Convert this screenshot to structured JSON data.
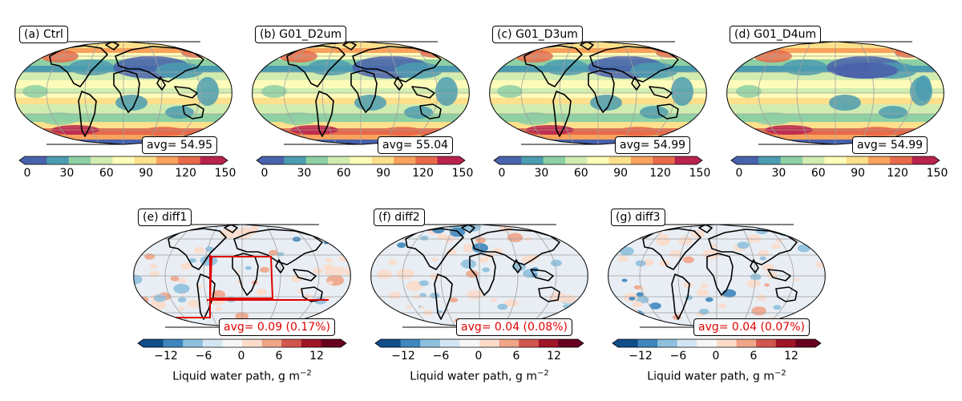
{
  "top_panels": [
    {
      "label": "(a) Ctrl",
      "avg": "avg= 54.95"
    },
    {
      "label": "(b) G01_D2um",
      "avg": "avg= 55.04"
    },
    {
      "label": "(c) G01_D3um",
      "avg": "avg= 54.99"
    },
    {
      "label": "(d) G01_D4um",
      "avg": "avg= 54.99"
    }
  ],
  "bottom_panels": [
    {
      "label": "(e) diff1",
      "avg": "avg= 0.09 (0.17%)"
    },
    {
      "label": "(f) diff2",
      "avg": "avg= 0.04 (0.08%)"
    },
    {
      "label": "(g) diff3",
      "avg": "avg= 0.04 (0.07%)"
    }
  ],
  "top_colorbar": {
    "ticks": [
      "0",
      "30",
      "60",
      "90",
      "120",
      "150"
    ],
    "colors": [
      "#4a62ab",
      "#4c9cb0",
      "#8ed0a3",
      "#d1ecb0",
      "#fdfcba",
      "#fde08c",
      "#f8a25c",
      "#e66a4a",
      "#b8224e"
    ]
  },
  "bottom_colorbar": {
    "ticks": [
      "−12",
      "−6",
      "0",
      "6",
      "12"
    ],
    "colors": [
      "#0f4d8a",
      "#3e86bd",
      "#8ec0de",
      "#d3e6f1",
      "#f6f6f6",
      "#fbdccc",
      "#f0a488",
      "#d3574d",
      "#a01428",
      "#67001f"
    ],
    "label": "Liquid water path, g m",
    "label_sup": "−2"
  },
  "map_colors": {
    "ocean_top": [
      "#fdfcba",
      "#fde08c",
      "#8ed0a3",
      "#4c9cb0",
      "#d1ecb0"
    ],
    "diff_bg": "#e8eef4",
    "coast": "#000000",
    "grid": "#a0a0a0",
    "region_box": "#e00000"
  }
}
